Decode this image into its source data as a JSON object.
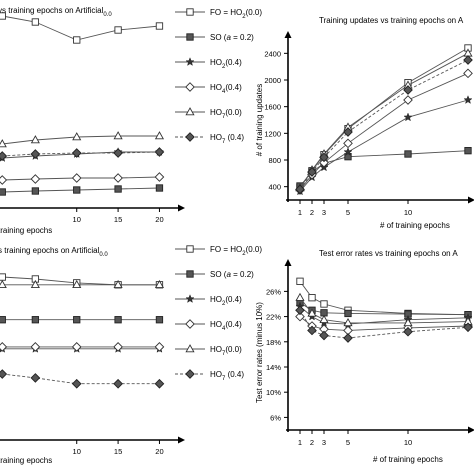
{
  "figure": {
    "legend": [
      {
        "label": "FO = HO",
        "sub": "2",
        "tail": "(0.0)",
        "marker": "square-open",
        "dash": "0"
      },
      {
        "label": "SO   (",
        "italic": "a",
        "tail": " = 0.2)",
        "marker": "square-filled",
        "dash": "0"
      },
      {
        "label": "HO",
        "sub": "2",
        "tail": "(0.4)",
        "marker": "star",
        "dash": "0"
      },
      {
        "label": "HO",
        "sub": "4",
        "tail": "(0.4)",
        "marker": "diamond-open",
        "dash": "0"
      },
      {
        "label": "HO",
        "sub": "7",
        "tail": "(0.0)",
        "marker": "triangle-open",
        "dash": "0"
      },
      {
        "label": "HO",
        "sub": "7",
        "tail": "  (0.4)",
        "marker": "diamond-filled",
        "dash": "3 2"
      }
    ]
  },
  "chart_data": [
    {
      "type": "line",
      "panel": "top-left",
      "title": "vs training epochs on Artificial",
      "title_sub": "0.0",
      "xlabel": "training epochs",
      "ylabel": "",
      "xticks": [
        10,
        15,
        20
      ],
      "xlim": [
        0,
        22
      ],
      "ylim": [
        0,
        10
      ],
      "series": [
        {
          "name": "FO = HO2(0.0)",
          "marker": "square-open",
          "x": [
            1,
            5,
            10,
            15,
            20
          ],
          "y": [
            9.6,
            9.3,
            8.4,
            8.9,
            9.1
          ]
        },
        {
          "name": "SO (a = 0.2)",
          "marker": "square-filled",
          "x": [
            1,
            5,
            10,
            15,
            20
          ],
          "y": [
            0.8,
            0.85,
            0.9,
            0.95,
            1.0
          ]
        },
        {
          "name": "HO2(0.4)",
          "marker": "star",
          "x": [
            1,
            5,
            10,
            15,
            20
          ],
          "y": [
            2.5,
            2.6,
            2.7,
            2.8,
            2.8
          ]
        },
        {
          "name": "HO4(0.4)",
          "marker": "diamond-open",
          "x": [
            1,
            5,
            10,
            15,
            20
          ],
          "y": [
            1.4,
            1.45,
            1.5,
            1.5,
            1.55
          ]
        },
        {
          "name": "HO7(0.0)",
          "marker": "triangle-open",
          "x": [
            1,
            5,
            10,
            15,
            20
          ],
          "y": [
            3.2,
            3.4,
            3.55,
            3.6,
            3.6
          ]
        },
        {
          "name": "HO7(0.4)",
          "marker": "diamond-filled",
          "x": [
            1,
            5,
            10,
            15,
            20
          ],
          "y": [
            2.6,
            2.7,
            2.75,
            2.75,
            2.8
          ]
        }
      ]
    },
    {
      "type": "line",
      "panel": "top-right",
      "title": "Training updates vs training epochs on A",
      "xlabel": "# of training epochs",
      "ylabel": "# of training updates",
      "xticks": [
        1,
        2,
        3,
        5,
        10
      ],
      "yticks": [
        400,
        800,
        1200,
        1600,
        2000,
        2400
      ],
      "xlim": [
        0,
        15.5
      ],
      "ylim": [
        200,
        2600
      ],
      "series": [
        {
          "name": "FO = HO2(0.0)",
          "marker": "square-open",
          "x": [
            1,
            2,
            3,
            5,
            10,
            15
          ],
          "y": [
            390,
            640,
            880,
            1270,
            1960,
            2480
          ]
        },
        {
          "name": "SO (a = 0.2)",
          "marker": "square-filled",
          "x": [
            1,
            2,
            3,
            5,
            10,
            15
          ],
          "y": [
            410,
            620,
            750,
            850,
            890,
            940
          ]
        },
        {
          "name": "HO2(0.4)",
          "marker": "star",
          "x": [
            1,
            2,
            3,
            5,
            10,
            15
          ],
          "y": [
            330,
            540,
            690,
            920,
            1440,
            1700
          ]
        },
        {
          "name": "HO4(0.4)",
          "marker": "diamond-open",
          "x": [
            1,
            2,
            3,
            5,
            10,
            15
          ],
          "y": [
            350,
            580,
            760,
            1050,
            1700,
            2100
          ]
        },
        {
          "name": "HO7(0.0)",
          "marker": "triangle-open",
          "x": [
            1,
            2,
            3,
            5,
            10,
            15
          ],
          "y": [
            380,
            650,
            890,
            1290,
            1920,
            2400
          ]
        },
        {
          "name": "HO7(0.4)",
          "marker": "diamond-filled",
          "x": [
            1,
            2,
            3,
            5,
            10,
            15
          ],
          "y": [
            360,
            620,
            840,
            1220,
            1850,
            2300
          ]
        }
      ]
    },
    {
      "type": "line",
      "panel": "bottom-left",
      "title": "s training epochs on Artificial",
      "title_sub": "0.0",
      "xlabel": "training epochs",
      "ylabel": "",
      "xticks": [
        10,
        15,
        20
      ],
      "xlim": [
        0,
        22
      ],
      "ylim": [
        0,
        10
      ],
      "series": [
        {
          "name": "FO = HO2(0.0)",
          "marker": "square-open",
          "x": [
            1,
            5,
            10,
            15,
            20
          ],
          "y": [
            8.4,
            8.3,
            8.1,
            8.0,
            8.0
          ]
        },
        {
          "name": "SO (a = 0.2)",
          "marker": "square-filled",
          "x": [
            1,
            5,
            10,
            15,
            20
          ],
          "y": [
            6.2,
            6.2,
            6.2,
            6.2,
            6.2
          ]
        },
        {
          "name": "HO2(0.4)",
          "marker": "star",
          "x": [
            1,
            5,
            10,
            15,
            20
          ],
          "y": [
            4.7,
            4.7,
            4.7,
            4.7,
            4.7
          ]
        },
        {
          "name": "HO4(0.4)",
          "marker": "diamond-open",
          "x": [
            1,
            5,
            10,
            15,
            20
          ],
          "y": [
            4.8,
            4.8,
            4.8,
            4.8,
            4.8
          ]
        },
        {
          "name": "HO7(0.0)",
          "marker": "triangle-open",
          "x": [
            1,
            5,
            10,
            15,
            20
          ],
          "y": [
            8.0,
            8.0,
            8.0,
            8.0,
            8.0
          ]
        },
        {
          "name": "HO7(0.4)",
          "marker": "diamond-filled",
          "x": [
            1,
            5,
            10,
            15,
            20
          ],
          "y": [
            3.4,
            3.2,
            2.9,
            2.9,
            2.9
          ]
        }
      ]
    },
    {
      "type": "line",
      "panel": "bottom-right",
      "title": "Test error rates vs training epochs on A",
      "xlabel": "# of training epochs",
      "ylabel": "Test error rates (minus 10%)",
      "xticks": [
        1,
        2,
        3,
        5,
        10
      ],
      "yticks": [
        "6%",
        "10%",
        "14%",
        "18%",
        "22%",
        "26%"
      ],
      "yvals": [
        6,
        10,
        14,
        18,
        22,
        26
      ],
      "xlim": [
        0,
        15.5
      ],
      "ylim": [
        4,
        28.6
      ],
      "series": [
        {
          "name": "FO = HO2(0.0)",
          "marker": "square-open",
          "x": [
            1,
            2,
            3,
            5,
            10,
            15
          ],
          "y": [
            27.6,
            25.0,
            24.0,
            23.0,
            22.5,
            22.3
          ]
        },
        {
          "name": "SO (a = 0.2)",
          "marker": "square-filled",
          "x": [
            1,
            2,
            3,
            5,
            10,
            15
          ],
          "y": [
            24.2,
            23.0,
            22.6,
            22.5,
            22.4,
            22.3
          ]
        },
        {
          "name": "HO2(0.4)",
          "marker": "star",
          "x": [
            1,
            2,
            3,
            5,
            10,
            15
          ],
          "y": [
            23.6,
            22.0,
            21.0,
            20.8,
            21.5,
            21.8
          ]
        },
        {
          "name": "HO4(0.4)",
          "marker": "diamond-open",
          "x": [
            1,
            2,
            3,
            5,
            10,
            15
          ],
          "y": [
            22.0,
            20.5,
            20.0,
            19.8,
            20.2,
            20.5
          ]
        },
        {
          "name": "HO7(0.0)",
          "marker": "triangle-open",
          "x": [
            1,
            2,
            3,
            5,
            10,
            15
          ],
          "y": [
            25.0,
            22.5,
            21.5,
            21.0,
            21.0,
            21.2
          ]
        },
        {
          "name": "HO7(0.4)",
          "marker": "diamond-filled",
          "x": [
            1,
            2,
            3,
            5,
            10,
            15
          ],
          "y": [
            23.0,
            19.8,
            19.0,
            18.6,
            19.6,
            20.3
          ]
        }
      ]
    }
  ]
}
